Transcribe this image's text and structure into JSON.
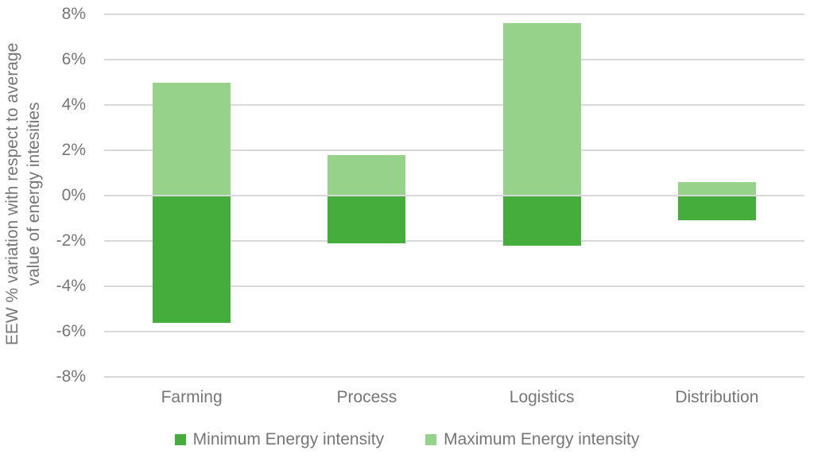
{
  "colors": {
    "min_series": "#45AD3C",
    "max_series": "#97D28A",
    "grid": "#D9D9D9",
    "text": "#767676",
    "background": "#FFFFFF"
  },
  "y_axis": {
    "title_line1": "EEW % variation with respect to average",
    "title_line2": "value of energy intesities"
  },
  "chart_data": {
    "type": "bar",
    "subtype": "diverging-stacked-column",
    "title": "",
    "xlabel": "",
    "ylabel": "EEW % variation with respect to average value of energy intesities",
    "categories": [
      "Farming",
      "Process",
      "Logistics",
      "Distribution"
    ],
    "series": [
      {
        "name": "Minimum Energy intensity",
        "color": "#45AD3C",
        "values": [
          -5.6,
          -2.1,
          -2.2,
          -1.1
        ]
      },
      {
        "name": "Maximum Energy intensity",
        "color": "#97D28A",
        "values": [
          5.0,
          1.8,
          7.6,
          0.6
        ]
      }
    ],
    "ylim": [
      -8,
      8
    ],
    "y_tick_labels": [
      "8%",
      "6%",
      "4%",
      "2%",
      "0%",
      "-2%",
      "-4%",
      "-6%",
      "-8%"
    ],
    "grid": true,
    "legend_position": "bottom"
  }
}
